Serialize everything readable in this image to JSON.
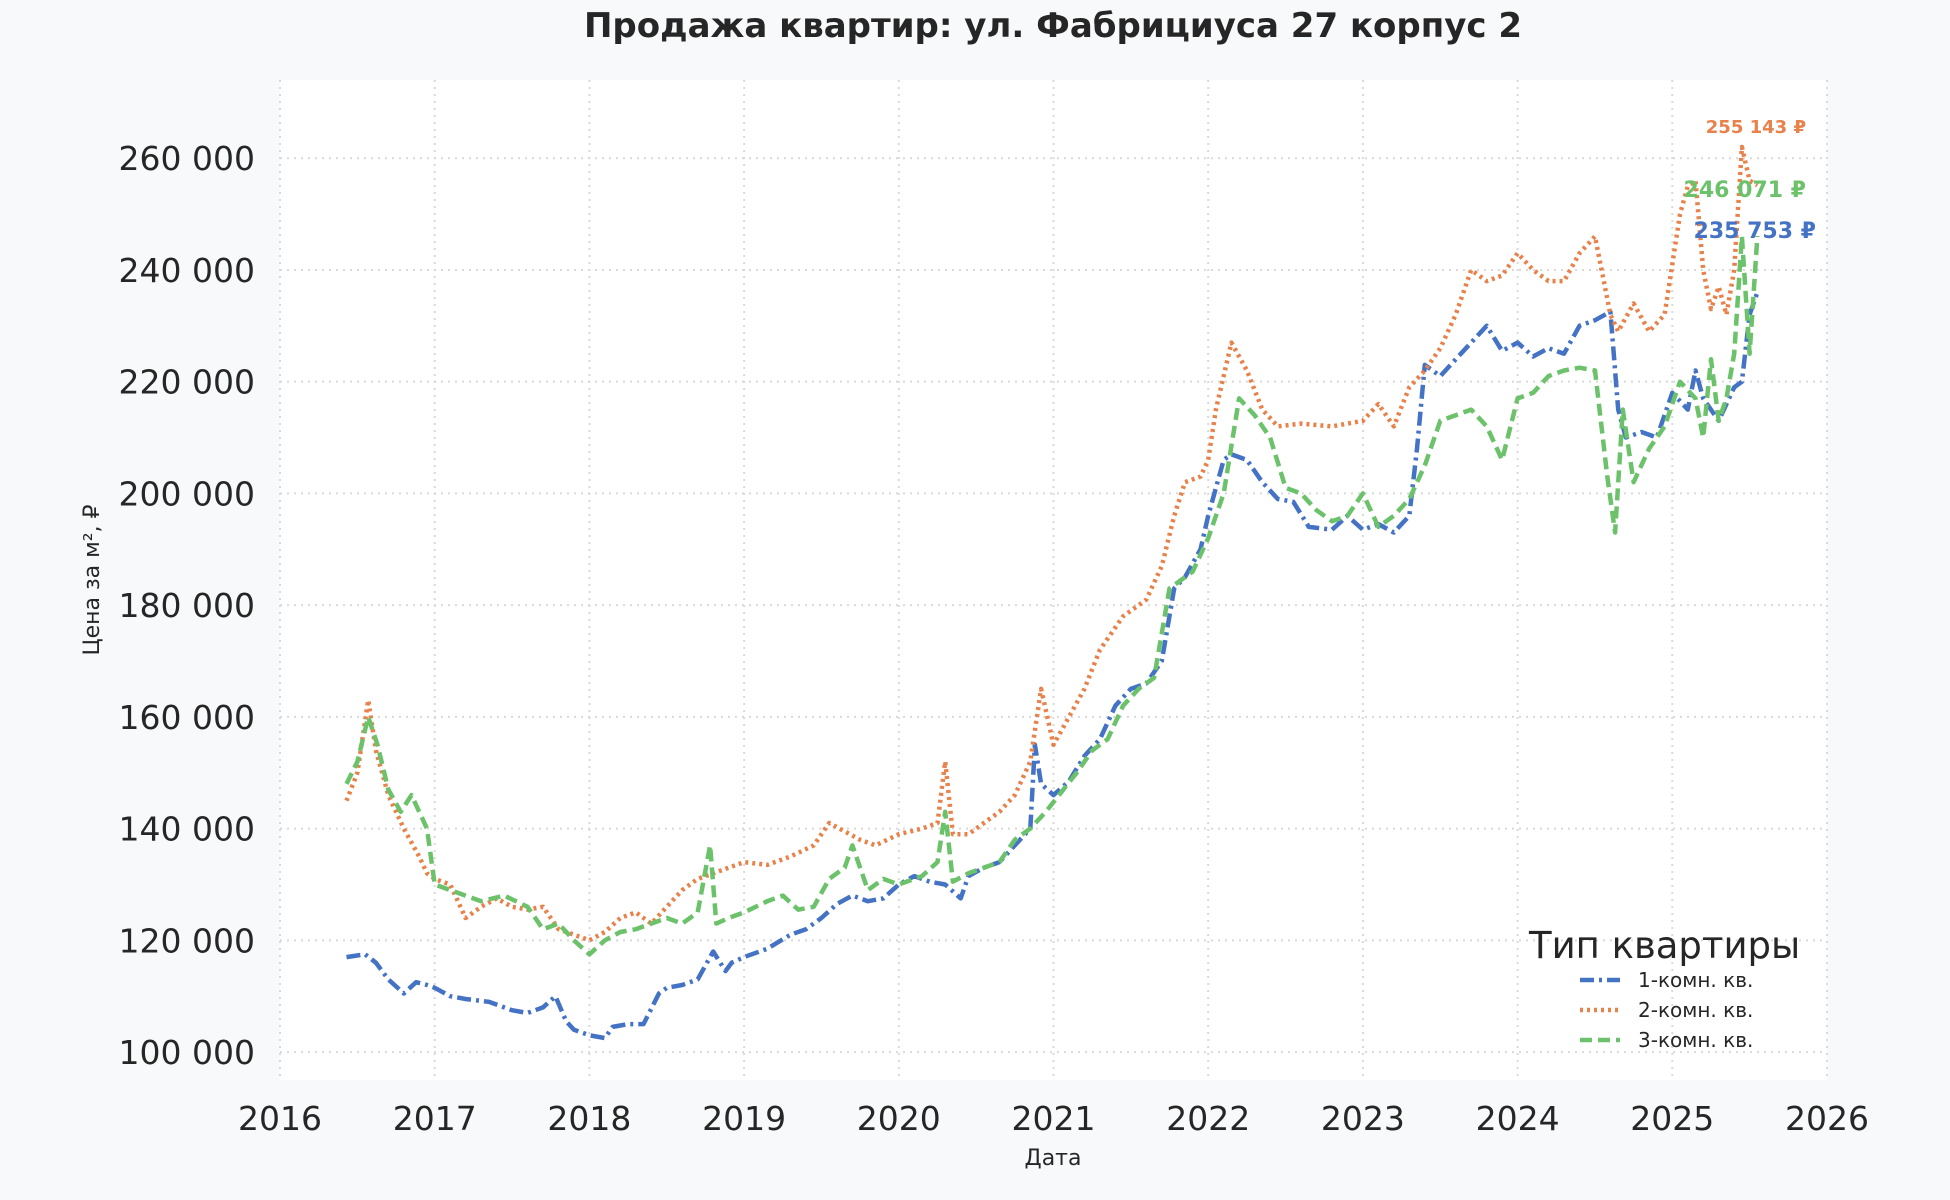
{
  "chart_data": {
    "type": "line",
    "title": "Продажа квартир: ул. Фабрициуса 27 корпус 2",
    "xlabel": "Дата",
    "ylabel": "Цена за м², ₽",
    "xlim": [
      2016,
      2026
    ],
    "ylim": [
      95000,
      274000
    ],
    "x_ticks": [
      "2016",
      "2017",
      "2018",
      "2019",
      "2020",
      "2021",
      "2022",
      "2023",
      "2024",
      "2025",
      "2026"
    ],
    "y_ticks": [
      "100 000",
      "120 000",
      "140 000",
      "160 000",
      "180 000",
      "200 000",
      "220 000",
      "240 000",
      "260 000"
    ],
    "grid": true,
    "legend_title": "Тип квартиры",
    "legend_position": "bottom-right",
    "series": [
      {
        "name": "1-комн. кв.",
        "color": "#4472c4",
        "dash": "dashdot",
        "end_label": "235 753 ₽",
        "x": [
          2016.43,
          2016.55,
          2016.62,
          2016.7,
          2016.8,
          2016.88,
          2016.95,
          2017.0,
          2017.1,
          2017.2,
          2017.35,
          2017.5,
          2017.6,
          2017.7,
          2017.78,
          2017.85,
          2017.9,
          2018.0,
          2018.1,
          2018.15,
          2018.25,
          2018.35,
          2018.45,
          2018.5,
          2018.6,
          2018.7,
          2018.8,
          2018.88,
          2018.92,
          2019.0,
          2019.15,
          2019.3,
          2019.4,
          2019.5,
          2019.6,
          2019.7,
          2019.8,
          2019.9,
          2020.0,
          2020.1,
          2020.2,
          2020.3,
          2020.4,
          2020.45,
          2020.55,
          2020.65,
          2020.75,
          2020.85,
          2020.88,
          2020.92,
          2021.0,
          2021.1,
          2021.2,
          2021.3,
          2021.4,
          2021.5,
          2021.6,
          2021.7,
          2021.78,
          2021.85,
          2021.95,
          2022.0,
          2022.1,
          2022.15,
          2022.25,
          2022.35,
          2022.45,
          2022.55,
          2022.65,
          2022.8,
          2022.9,
          2023.0,
          2023.1,
          2023.2,
          2023.3,
          2023.35,
          2023.4,
          2023.5,
          2023.6,
          2023.7,
          2023.8,
          2023.9,
          2024.0,
          2024.1,
          2024.2,
          2024.3,
          2024.4,
          2024.5,
          2024.6,
          2024.65,
          2024.7,
          2024.8,
          2024.9,
          2025.0,
          2025.1,
          2025.15,
          2025.2,
          2025.3,
          2025.4,
          2025.45,
          2025.5,
          2025.55
        ],
        "y": [
          117000,
          117500,
          116000,
          113000,
          110500,
          112500,
          112000,
          111500,
          110000,
          109500,
          109000,
          107500,
          107000,
          108000,
          110000,
          105500,
          104000,
          103000,
          102500,
          104500,
          105000,
          105000,
          110500,
          111500,
          112000,
          113000,
          118000,
          114500,
          116000,
          117000,
          118500,
          121000,
          122000,
          124000,
          126500,
          128000,
          127000,
          127500,
          130000,
          131500,
          130500,
          130000,
          127500,
          131500,
          133000,
          134000,
          137000,
          140000,
          155000,
          148000,
          146000,
          148500,
          153000,
          156000,
          162000,
          165000,
          166000,
          170000,
          183000,
          185000,
          190000,
          196000,
          206000,
          207000,
          206000,
          202000,
          199000,
          198500,
          194000,
          193500,
          196000,
          193500,
          194500,
          193000,
          196000,
          208000,
          223000,
          221000,
          224000,
          227000,
          230000,
          225500,
          227000,
          224500,
          226000,
          225000,
          230000,
          231000,
          232500,
          215000,
          210000,
          211000,
          210000,
          218000,
          215000,
          222000,
          217000,
          213000,
          219000,
          220000,
          232000,
          236000
        ]
      },
      {
        "name": "2-комн. кв.",
        "color": "#e8814a",
        "dash": "dotted",
        "end_label": "255 143 ₽",
        "x": [
          2016.43,
          2016.5,
          2016.57,
          2016.62,
          2016.7,
          2016.8,
          2016.9,
          2016.95,
          2017.0,
          2017.1,
          2017.2,
          2017.3,
          2017.4,
          2017.5,
          2017.6,
          2017.7,
          2017.8,
          2017.9,
          2018.0,
          2018.1,
          2018.2,
          2018.3,
          2018.4,
          2018.5,
          2018.6,
          2018.7,
          2018.8,
          2018.9,
          2019.0,
          2019.15,
          2019.3,
          2019.45,
          2019.55,
          2019.65,
          2019.75,
          2019.85,
          2020.0,
          2020.15,
          2020.25,
          2020.3,
          2020.35,
          2020.45,
          2020.55,
          2020.65,
          2020.75,
          2020.85,
          2020.92,
          2021.0,
          2021.1,
          2021.2,
          2021.3,
          2021.45,
          2021.6,
          2021.7,
          2021.78,
          2021.85,
          2021.95,
          2022.0,
          2022.05,
          2022.15,
          2022.25,
          2022.35,
          2022.45,
          2022.6,
          2022.8,
          2023.0,
          2023.1,
          2023.2,
          2023.3,
          2023.4,
          2023.5,
          2023.6,
          2023.7,
          2023.8,
          2023.9,
          2024.0,
          2024.1,
          2024.2,
          2024.3,
          2024.4,
          2024.5,
          2024.6,
          2024.65,
          2024.75,
          2024.85,
          2024.95,
          2025.05,
          2025.1,
          2025.15,
          2025.2,
          2025.25,
          2025.3,
          2025.35,
          2025.4,
          2025.45,
          2025.5,
          2025.55
        ],
        "y": [
          145000,
          150000,
          163000,
          154000,
          146000,
          140000,
          135000,
          132000,
          131000,
          130000,
          124000,
          126000,
          127500,
          126000,
          125500,
          126000,
          122000,
          121000,
          120000,
          121500,
          124000,
          125000,
          123000,
          126000,
          129000,
          131000,
          132000,
          133000,
          134000,
          133500,
          135000,
          137000,
          141000,
          139500,
          138000,
          137000,
          139000,
          140000,
          141000,
          152000,
          139000,
          139000,
          141000,
          143000,
          146000,
          152000,
          165000,
          155000,
          160000,
          165000,
          172000,
          178000,
          181000,
          187000,
          196000,
          202000,
          203000,
          206000,
          215000,
          227000,
          222000,
          215000,
          212000,
          212500,
          212000,
          213000,
          216000,
          212000,
          219000,
          222000,
          226000,
          232000,
          240000,
          238000,
          239000,
          243000,
          240000,
          238000,
          238000,
          243000,
          246000,
          232000,
          229000,
          234000,
          229000,
          232000,
          250000,
          255000,
          256000,
          240000,
          233000,
          237000,
          232000,
          240000,
          262000,
          256000,
          255143
        ]
      },
      {
        "name": "3-комн. кв.",
        "color": "#6cc26a",
        "dash": "dashed",
        "end_label": "246 071 ₽",
        "x": [
          2016.43,
          2016.5,
          2016.57,
          2016.63,
          2016.7,
          2016.78,
          2016.85,
          2016.95,
          2017.0,
          2017.1,
          2017.2,
          2017.3,
          2017.45,
          2017.6,
          2017.7,
          2017.8,
          2017.9,
          2018.0,
          2018.1,
          2018.2,
          2018.3,
          2018.4,
          2018.5,
          2018.6,
          2018.7,
          2018.78,
          2018.82,
          2018.9,
          2019.0,
          2019.15,
          2019.25,
          2019.35,
          2019.45,
          2019.55,
          2019.65,
          2019.7,
          2019.8,
          2019.9,
          2020.0,
          2020.15,
          2020.25,
          2020.3,
          2020.35,
          2020.45,
          2020.55,
          2020.65,
          2020.75,
          2020.85,
          2020.95,
          2021.05,
          2021.15,
          2021.25,
          2021.35,
          2021.45,
          2021.55,
          2021.65,
          2021.75,
          2021.8,
          2021.9,
          2022.0,
          2022.1,
          2022.2,
          2022.3,
          2022.4,
          2022.5,
          2022.6,
          2022.7,
          2022.8,
          2022.9,
          2023.0,
          2023.1,
          2023.2,
          2023.3,
          2023.4,
          2023.5,
          2023.6,
          2023.7,
          2023.8,
          2023.9,
          2024.0,
          2024.1,
          2024.2,
          2024.3,
          2024.4,
          2024.5,
          2024.58,
          2024.63,
          2024.68,
          2024.75,
          2024.85,
          2024.95,
          2025.05,
          2025.15,
          2025.2,
          2025.25,
          2025.3,
          2025.35,
          2025.4,
          2025.45,
          2025.5,
          2025.55
        ],
        "y": [
          148000,
          152000,
          160000,
          155000,
          147000,
          143000,
          146000,
          140000,
          130000,
          129000,
          128000,
          127000,
          128000,
          126000,
          122000,
          123000,
          120000,
          117500,
          120000,
          121500,
          122000,
          123000,
          124000,
          123000,
          125000,
          137000,
          123000,
          124000,
          125000,
          127000,
          128000,
          125500,
          126000,
          131000,
          133000,
          137000,
          129000,
          131000,
          130000,
          131500,
          134000,
          143000,
          130500,
          132000,
          133000,
          134000,
          138000,
          140000,
          143000,
          146500,
          150000,
          154000,
          156000,
          162000,
          165000,
          167000,
          183000,
          184000,
          186000,
          192000,
          200000,
          217000,
          214000,
          210000,
          201000,
          200000,
          197000,
          195000,
          196000,
          200000,
          194000,
          196000,
          199000,
          205000,
          213000,
          214000,
          215000,
          212000,
          206000,
          217000,
          218000,
          221000,
          222000,
          222500,
          222000,
          203000,
          193000,
          215000,
          202000,
          208000,
          212000,
          220000,
          217000,
          210000,
          224000,
          213000,
          217000,
          225000,
          246000,
          225000,
          246071
        ]
      }
    ]
  }
}
